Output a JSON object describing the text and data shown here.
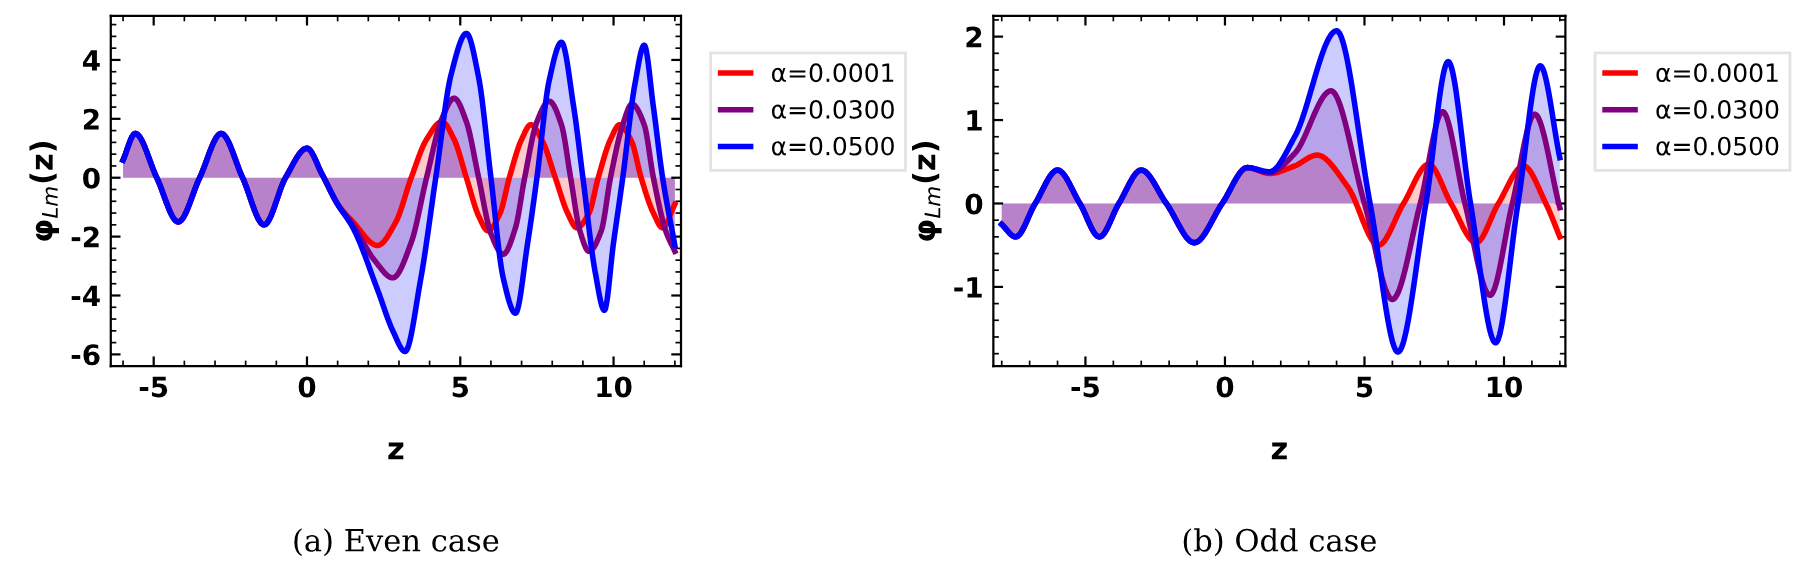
{
  "chart_data": [
    {
      "type": "area",
      "xlabel": "z",
      "ylabel": "φ$_{Lm}$(z)",
      "annotations": [
        "(a) Even case"
      ],
      "xlim": [
        -6.4,
        12.2
      ],
      "ylim": [
        -6.4,
        5.5
      ],
      "xticks": [
        -5,
        0,
        5,
        10
      ],
      "yticks": [
        -6,
        -4,
        -2,
        0,
        2,
        4
      ],
      "grid": false,
      "legend": "right",
      "line_style": "solid",
      "series": [
        {
          "name": "α=0.0001",
          "color": "#ff0000",
          "x": [
            -6,
            -5.6,
            -4.9,
            -4.2,
            -3.5,
            -2.8,
            -2.1,
            -1.4,
            -0.7,
            0,
            0.5,
            1.0,
            1.5,
            2.3,
            2.9,
            3.4,
            3.9,
            4.4,
            4.8,
            5.2,
            5.6,
            5.9,
            6.3,
            6.6,
            7.0,
            7.3,
            7.7,
            8.1,
            8.5,
            8.8,
            9.2,
            9.5,
            9.9,
            10.2,
            10.6,
            10.9,
            11.3,
            11.6,
            12
          ],
          "values": [
            0.6,
            1.5,
            0,
            -1.5,
            0,
            1.5,
            0,
            -1.6,
            0,
            1.0,
            0.1,
            -0.9,
            -1.5,
            -2.3,
            -1.5,
            0,
            1.3,
            1.9,
            1.3,
            0,
            -1.3,
            -1.8,
            -1.2,
            0,
            1.3,
            1.8,
            1.2,
            0,
            -1.2,
            -1.7,
            -1.2,
            0,
            1.3,
            1.8,
            1.2,
            0,
            -1.2,
            -1.7,
            -0.9
          ]
        },
        {
          "name": "α=0.0300",
          "color": "#800080",
          "x": [
            -6,
            -5.6,
            -4.9,
            -4.2,
            -3.5,
            -2.8,
            -2.1,
            -1.4,
            -0.7,
            0,
            0.5,
            1.0,
            1.5,
            2.2,
            2.8,
            3.4,
            3.9,
            4.4,
            4.8,
            5.2,
            5.6,
            6.0,
            6.4,
            6.8,
            7.1,
            7.5,
            7.9,
            8.3,
            8.6,
            8.9,
            9.2,
            9.6,
            9.9,
            10.3,
            10.6,
            11.0,
            11.3,
            11.7,
            12
          ],
          "values": [
            0.6,
            1.5,
            0,
            -1.5,
            0,
            1.5,
            0,
            -1.6,
            0,
            1.0,
            0.1,
            -0.9,
            -1.6,
            -2.8,
            -3.4,
            -2.2,
            0,
            2.0,
            2.7,
            1.9,
            0,
            -1.9,
            -2.6,
            -1.7,
            0,
            1.9,
            2.6,
            1.8,
            0,
            -1.8,
            -2.5,
            -1.8,
            0,
            1.8,
            2.5,
            1.8,
            0,
            -1.8,
            -2.5
          ]
        },
        {
          "name": "α=0.0500",
          "color": "#0000ff",
          "x": [
            -6,
            -5.6,
            -4.9,
            -4.2,
            -3.5,
            -2.8,
            -2.1,
            -1.4,
            -0.7,
            0,
            0.5,
            1.0,
            1.5,
            2.3,
            2.8,
            3.2,
            3.7,
            4.2,
            4.7,
            5.2,
            5.6,
            6.0,
            6.4,
            6.8,
            7.2,
            7.5,
            7.9,
            8.3,
            8.7,
            9.0,
            9.4,
            9.7,
            10.0,
            10.3,
            10.7,
            11.0,
            11.3,
            11.6,
            12
          ],
          "values": [
            0.6,
            1.5,
            0,
            -1.5,
            0,
            1.5,
            0,
            -1.6,
            0,
            1.0,
            0.1,
            -0.9,
            -1.7,
            -3.8,
            -5.2,
            -5.9,
            -3.5,
            0,
            3.5,
            4.9,
            3.4,
            0,
            -3.4,
            -4.6,
            -2.2,
            0,
            3.3,
            4.6,
            2.4,
            0,
            -3.2,
            -4.5,
            -2.2,
            0,
            3.2,
            4.5,
            2.4,
            0,
            -2.3
          ]
        }
      ]
    },
    {
      "type": "area",
      "xlabel": "z",
      "ylabel": "φ$_{Lm}$(z)",
      "annotations": [
        "(b) Odd case"
      ],
      "xlim": [
        -8.3,
        12.2
      ],
      "ylim": [
        -1.95,
        2.25
      ],
      "xticks": [
        -5,
        0,
        5,
        10
      ],
      "yticks": [
        -1,
        0,
        1,
        2
      ],
      "grid": false,
      "legend": "right",
      "line_style": "solid",
      "series": [
        {
          "name": "α=0.0001",
          "color": "#ff0000",
          "x": [
            -8,
            -7.5,
            -6.8,
            -6,
            -5.2,
            -4.5,
            -3.8,
            -3,
            -2.1,
            -1.1,
            -0.1,
            0.8,
            1.6,
            2.5,
            3.3,
            4.4,
            5.5,
            6.4,
            7.3,
            8.1,
            9.0,
            9.8,
            10.7,
            11.5,
            12
          ],
          "values": [
            -0.25,
            -0.4,
            0,
            0.4,
            0,
            -0.4,
            0,
            0.4,
            0,
            -0.47,
            0,
            0.43,
            0.36,
            0.45,
            0.58,
            0.2,
            -0.5,
            0,
            0.47,
            0,
            -0.47,
            0,
            0.45,
            0,
            -0.4
          ]
        },
        {
          "name": "α=0.0300",
          "color": "#800080",
          "x": [
            -8,
            -7.5,
            -6.8,
            -6,
            -5.2,
            -4.5,
            -3.8,
            -3,
            -2.1,
            -1.1,
            -0.1,
            0.8,
            1.6,
            2.5,
            3.8,
            5.0,
            6.0,
            7.0,
            7.8,
            8.6,
            9.5,
            10.3,
            11.1,
            12
          ],
          "values": [
            -0.25,
            -0.4,
            0,
            0.4,
            0,
            -0.4,
            0,
            0.4,
            0,
            -0.47,
            0,
            0.43,
            0.37,
            0.6,
            1.35,
            0,
            -1.15,
            0,
            1.1,
            0,
            -1.1,
            0,
            1.07,
            -0.05
          ]
        },
        {
          "name": "α=0.0500",
          "color": "#0000ff",
          "x": [
            -8,
            -7.5,
            -6.8,
            -6,
            -5.2,
            -4.5,
            -3.8,
            -3,
            -2.1,
            -1.1,
            -0.1,
            0.8,
            1.6,
            2.5,
            4.0,
            5.2,
            6.2,
            7.2,
            8.0,
            8.8,
            9.7,
            10.5,
            11.3,
            12
          ],
          "values": [
            -0.25,
            -0.4,
            0,
            0.4,
            0,
            -0.4,
            0,
            0.4,
            0,
            -0.47,
            0,
            0.43,
            0.38,
            0.8,
            2.07,
            0,
            -1.78,
            0,
            1.7,
            0,
            -1.67,
            0,
            1.65,
            0.55
          ]
        }
      ]
    }
  ]
}
